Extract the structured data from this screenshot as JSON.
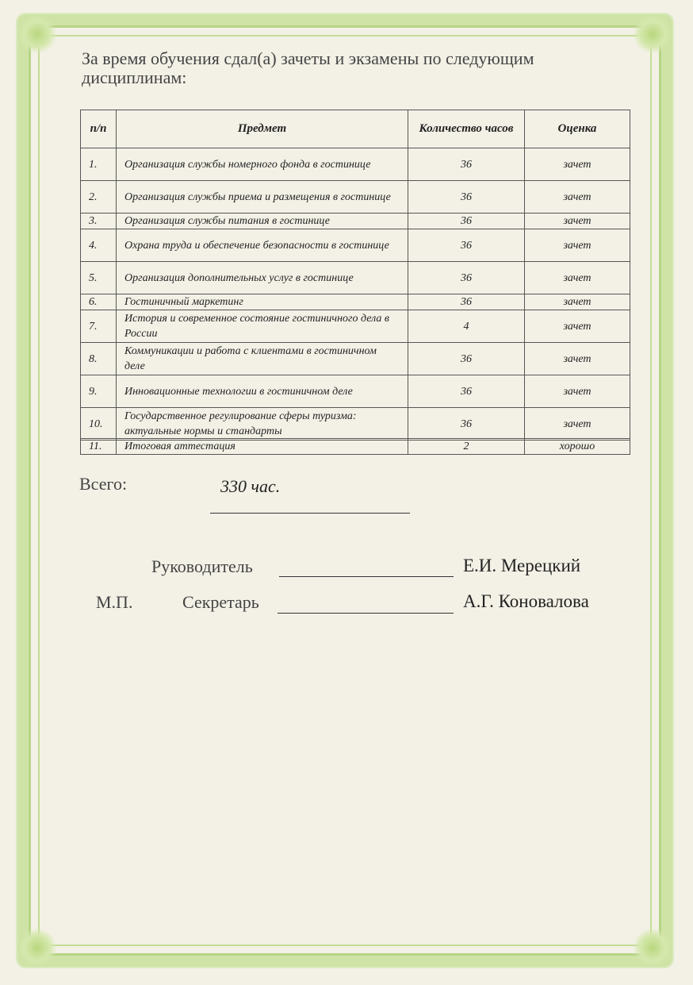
{
  "intro": "За время обучения сдал(а) зачеты и экзамены по следующим дисциплинам:",
  "table": {
    "headers": [
      "п/п",
      "Предмет",
      "Количество часов",
      "Оценка"
    ],
    "rows": [
      {
        "n": "1.",
        "subject": "Организация службы номерного фонда в гостинице",
        "hours": "36",
        "grade": "зачет"
      },
      {
        "n": "2.",
        "subject": "Организация службы приема и размещения в гостинице",
        "hours": "36",
        "grade": "зачет"
      },
      {
        "n": "3.",
        "subject": "Организация службы питания в гостинице",
        "hours": "36",
        "grade": "зачет"
      },
      {
        "n": "4.",
        "subject": "Охрана труда и обеспечение безопасности в гостинице",
        "hours": "36",
        "grade": "зачет"
      },
      {
        "n": "5.",
        "subject": "Организация дополнительных услуг в гостинице",
        "hours": "36",
        "grade": "зачет"
      },
      {
        "n": "6.",
        "subject": "Гостиничный маркетинг",
        "hours": "36",
        "grade": "зачет"
      },
      {
        "n": "7.",
        "subject": "История и современное состояние гостиничного дела в России",
        "hours": "4",
        "grade": "зачет"
      },
      {
        "n": "8.",
        "subject": "Коммуникации и работа с клиентами в гостиничном деле",
        "hours": "36",
        "grade": "зачет"
      },
      {
        "n": "9.",
        "subject": "Инновационные технологии в гостиничном деле",
        "hours": "36",
        "grade": "зачет"
      },
      {
        "n": "10.",
        "subject": "Государственное регулирование сферы туризма: актуальные нормы и стандарты",
        "hours": "36",
        "grade": "зачет"
      },
      {
        "n": "11.",
        "subject": "Итоговая аттестация",
        "hours": "2",
        "grade": "хорошо"
      }
    ]
  },
  "total": {
    "label": "Всего:",
    "value": "330 час."
  },
  "signatures": {
    "head_label": "Руководитель",
    "head_name": "Е.И. Мерецкий",
    "stamp_label": "М.П.",
    "secretary_label": "Секретарь",
    "secretary_name": "А.Г. Коновалова"
  },
  "colors": {
    "frame": "#cfe3a6",
    "paper": "#f3f1e6"
  }
}
